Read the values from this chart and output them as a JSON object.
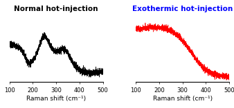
{
  "title_left": "Normal hot-injection",
  "title_right": "Exothermic hot-injection",
  "title_left_color": "black",
  "title_right_color": "blue",
  "xlabel": "Raman shift (cm⁻¹)",
  "xlim": [
    100,
    500
  ],
  "xticks": [
    100,
    200,
    300,
    400,
    500
  ],
  "line_color_left": "black",
  "line_color_right": "red",
  "line_width": 0.5,
  "title_fontsize": 7.5,
  "axis_fontsize": 6.5,
  "tick_fontsize": 6,
  "background_color": "white"
}
